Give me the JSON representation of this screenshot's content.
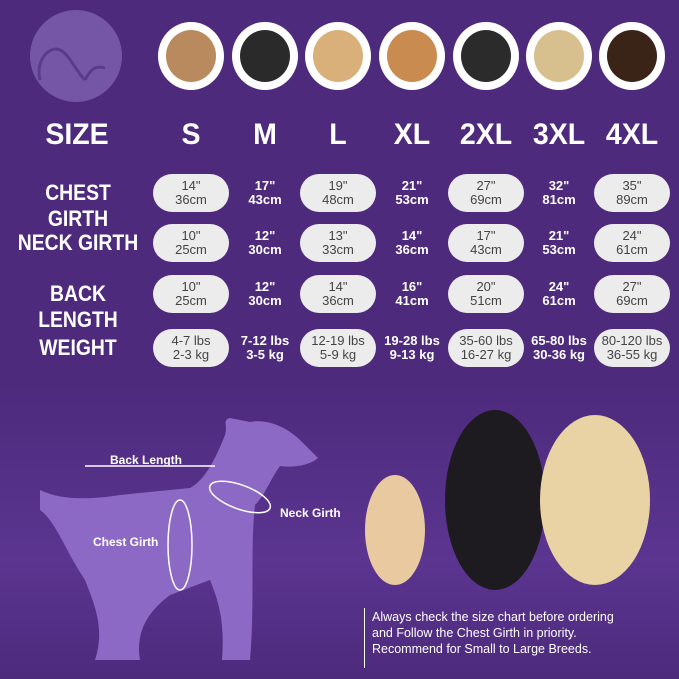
{
  "colors": {
    "background": "#4d2a7c",
    "pill": "#ececec",
    "silhouette": "#8d69c6"
  },
  "header": {
    "size_label": "SIZE",
    "sizes": [
      "S",
      "M",
      "L",
      "XL",
      "2XL",
      "3XL",
      "4XL"
    ]
  },
  "rows": [
    {
      "label": "CHEST GIRTH",
      "values": [
        [
          "14\"",
          "36cm"
        ],
        [
          "17\"",
          "43cm"
        ],
        [
          "19\"",
          "48cm"
        ],
        [
          "21\"",
          "53cm"
        ],
        [
          "27\"",
          "69cm"
        ],
        [
          "32\"",
          "81cm"
        ],
        [
          "35\"",
          "89cm"
        ]
      ]
    },
    {
      "label": "NECK GIRTH",
      "values": [
        [
          "10\"",
          "25cm"
        ],
        [
          "12\"",
          "30cm"
        ],
        [
          "13\"",
          "33cm"
        ],
        [
          "14\"",
          "36cm"
        ],
        [
          "17\"",
          "43cm"
        ],
        [
          "21\"",
          "53cm"
        ],
        [
          "24\"",
          "61cm"
        ]
      ]
    },
    {
      "label": "BACK LENGTH",
      "values": [
        [
          "10\"",
          "25cm"
        ],
        [
          "12\"",
          "30cm"
        ],
        [
          "14\"",
          "36cm"
        ],
        [
          "16\"",
          "41cm"
        ],
        [
          "20\"",
          "51cm"
        ],
        [
          "24\"",
          "61cm"
        ],
        [
          "27\"",
          "69cm"
        ]
      ]
    },
    {
      "label": "WEIGHT",
      "values": [
        [
          "4-7 lbs",
          "2-3 kg"
        ],
        [
          "7-12 lbs",
          "3-5 kg"
        ],
        [
          "12-19 lbs",
          "5-9 kg"
        ],
        [
          "19-28 lbs",
          "9-13 kg"
        ],
        [
          "35-60 lbs",
          "16-27 kg"
        ],
        [
          "65-80 lbs",
          "30-36 kg"
        ],
        [
          "80-120 lbs",
          "36-55 kg"
        ]
      ]
    }
  ],
  "diagram": {
    "back_length": "Back Length",
    "neck_girth": "Neck Girth",
    "chest_girth": "Chest Girth"
  },
  "note": [
    "Always check the size chart before ordering",
    "and Follow the Chest Girth in priority.",
    "Recommend for Small to Large Breeds."
  ]
}
